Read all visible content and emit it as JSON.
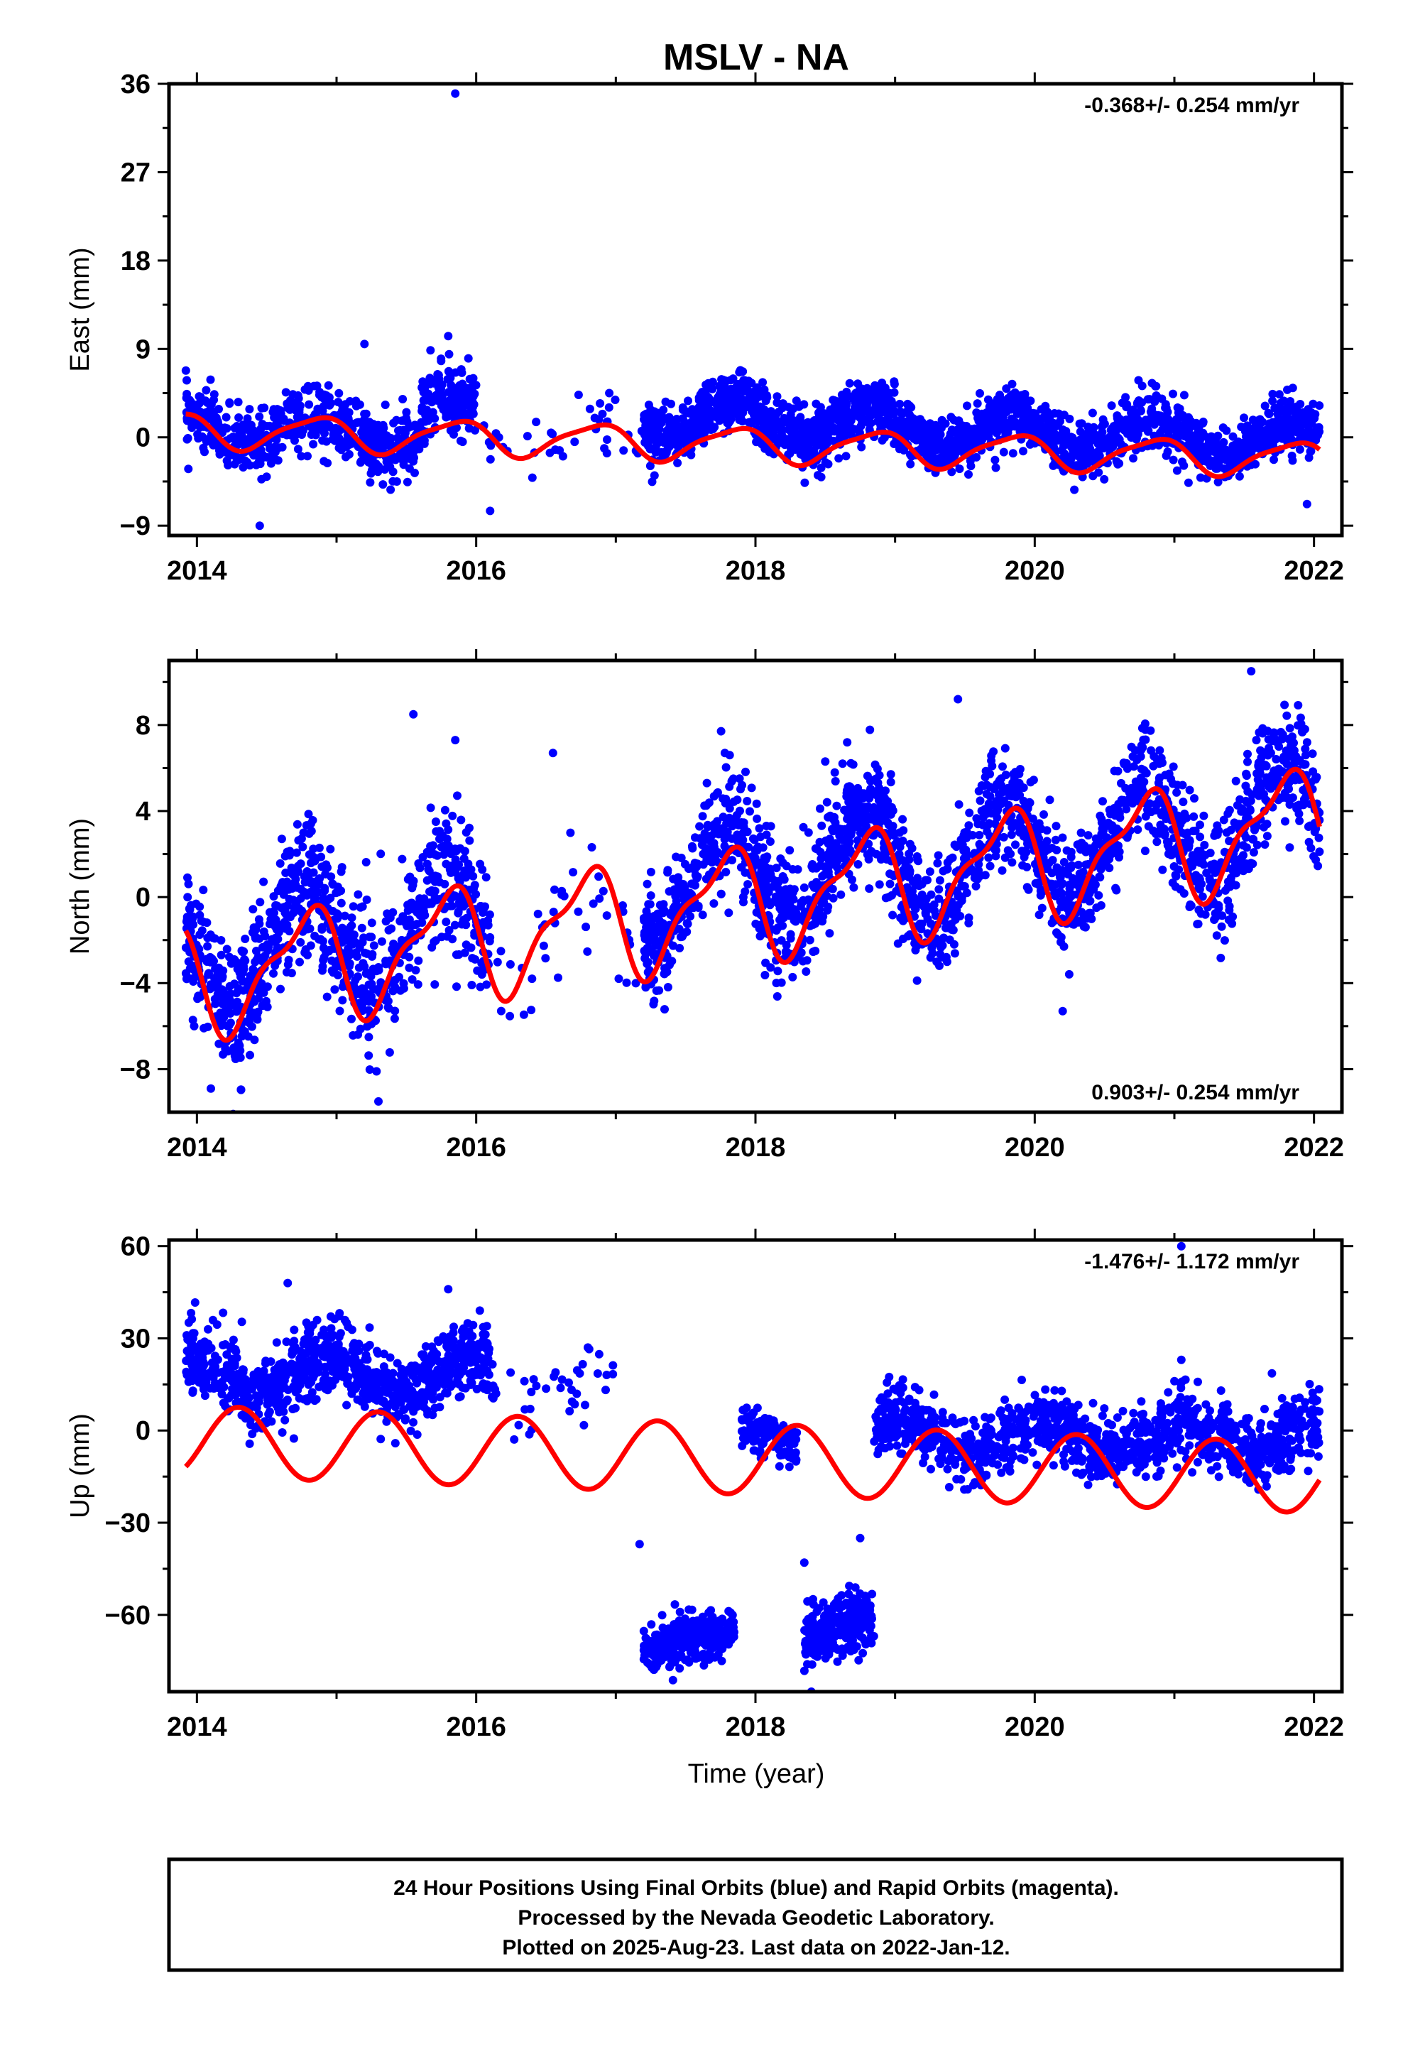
{
  "title": "MSLV - NA",
  "xlabel": "Time (year)",
  "footer": {
    "line1": "24 Hour Positions Using Final Orbits (blue) and Rapid Orbits (magenta).",
    "line2": "Processed by the Nevada Geodetic Laboratory.",
    "line3": "Plotted on 2025-Aug-23. Last data on 2022-Jan-12."
  },
  "colors": {
    "points": "#0000ff",
    "model": "#ff0000",
    "frame": "#000000"
  },
  "chart_data": [
    {
      "type": "scatter",
      "name": "east",
      "ylabel": "East (mm)",
      "rate_text": "-0.368+/- 0.254 mm/yr",
      "xlim": [
        2013.8,
        2022.2
      ],
      "ylim": [
        -10,
        36
      ],
      "xticks": [
        2014,
        2016,
        2018,
        2020,
        2022
      ],
      "yticks": [
        -9,
        0,
        9,
        18,
        27,
        36
      ],
      "segments": [
        {
          "x0": 2013.92,
          "x1": 2015.6,
          "base": 1.0,
          "slope": -0.37,
          "amp": 1.6,
          "phase": 0.6,
          "noise": 1.6,
          "n": 560
        },
        {
          "x0": 2015.6,
          "x1": 2016.0,
          "base": 2.5,
          "slope": -0.37,
          "amp": 1.6,
          "phase": 0.6,
          "noise": 1.8,
          "n": 180
        },
        {
          "x0": 2016.0,
          "x1": 2017.2,
          "base": 0.3,
          "slope": -0.37,
          "amp": 1.6,
          "phase": 0.6,
          "noise": 1.4,
          "n": 40
        },
        {
          "x0": 2017.2,
          "x1": 2019.0,
          "base": 2.0,
          "slope": -0.37,
          "amp": 1.8,
          "phase": 0.6,
          "noise": 1.5,
          "n": 820
        },
        {
          "x0": 2019.0,
          "x1": 2022.04,
          "base": 0.8,
          "slope": -0.37,
          "amp": 1.6,
          "phase": 0.6,
          "noise": 1.4,
          "n": 1200
        }
      ],
      "outliers": [
        [
          2015.85,
          35.0
        ],
        [
          2014.45,
          -9.0
        ],
        [
          2016.1,
          -7.5
        ],
        [
          2015.2,
          9.5
        ],
        [
          2015.8,
          10.3
        ],
        [
          2021.95,
          -6.8
        ]
      ],
      "model": {
        "intercept": 0.7,
        "slope": -0.368,
        "amp1": 1.7,
        "phase1": 0.6,
        "amp2": 0.4,
        "phase2": 0.9
      }
    },
    {
      "type": "scatter",
      "name": "north",
      "ylabel": "North (mm)",
      "rate_text": "0.903+/- 0.254 mm/yr",
      "xlim": [
        2013.8,
        2022.2
      ],
      "ylim": [
        -10,
        11
      ],
      "xticks": [
        2014,
        2016,
        2018,
        2020,
        2022
      ],
      "yticks": [
        -8,
        -4,
        0,
        4,
        8
      ],
      "segments": [
        {
          "x0": 2013.92,
          "x1": 2016.1,
          "base": -3.0,
          "slope": 0.9,
          "amp": 2.4,
          "phase": 0.52,
          "noise": 1.6,
          "n": 900
        },
        {
          "x0": 2016.1,
          "x1": 2017.2,
          "base": -2.0,
          "slope": 0.9,
          "amp": 2.2,
          "phase": 0.52,
          "noise": 1.3,
          "n": 40
        },
        {
          "x0": 2017.2,
          "x1": 2019.0,
          "base": 0.2,
          "slope": 0.9,
          "amp": 2.4,
          "phase": 0.52,
          "noise": 1.4,
          "n": 820
        },
        {
          "x0": 2019.0,
          "x1": 2022.04,
          "base": 1.2,
          "slope": 0.9,
          "amp": 2.5,
          "phase": 0.52,
          "noise": 1.3,
          "n": 1200
        }
      ],
      "outliers": [
        [
          2015.55,
          8.5
        ],
        [
          2015.85,
          7.3
        ],
        [
          2016.55,
          6.7
        ],
        [
          2018.5,
          6.3
        ],
        [
          2019.45,
          9.2
        ],
        [
          2021.55,
          10.5
        ],
        [
          2015.3,
          -9.5
        ],
        [
          2014.1,
          -8.9
        ],
        [
          2020.2,
          -5.3
        ]
      ],
      "model": {
        "intercept": -3.8,
        "slope": 0.903,
        "amp1": 2.4,
        "phase1": 0.52,
        "amp2": 0.9,
        "phase2": 0.3
      }
    },
    {
      "type": "scatter",
      "name": "up",
      "ylabel": "Up (mm)",
      "rate_text": "-1.476+/- 1.172 mm/yr",
      "xlim": [
        2013.8,
        2022.2
      ],
      "ylim": [
        -85,
        62
      ],
      "xticks": [
        2014,
        2016,
        2018,
        2020,
        2022
      ],
      "yticks": [
        -60,
        -30,
        0,
        30,
        60
      ],
      "segments": [
        {
          "x0": 2013.92,
          "x1": 2016.1,
          "base": 18.0,
          "slope": 0.0,
          "amp": 6.0,
          "phase": 0.7,
          "noise": 6.0,
          "n": 900
        },
        {
          "x0": 2016.1,
          "x1": 2017.0,
          "base": 12.0,
          "slope": 0.0,
          "amp": 4.0,
          "phase": 0.7,
          "noise": 6.0,
          "n": 40
        },
        {
          "x0": 2017.2,
          "x1": 2017.85,
          "base": -72.0,
          "slope": 12.0,
          "amp": 0.0,
          "phase": 0.0,
          "noise": 4.0,
          "n": 320
        },
        {
          "x0": 2017.9,
          "x1": 2018.3,
          "base": 0.0,
          "slope": -8.0,
          "amp": 0.0,
          "phase": 0.0,
          "noise": 4.0,
          "n": 110
        },
        {
          "x0": 2018.35,
          "x1": 2018.85,
          "base": -68.0,
          "slope": 14.0,
          "amp": 0.0,
          "phase": 0.0,
          "noise": 4.5,
          "n": 260
        },
        {
          "x0": 2018.85,
          "x1": 2022.04,
          "base": -2.0,
          "slope": 0.0,
          "amp": 5.0,
          "phase": 0.8,
          "noise": 5.5,
          "n": 1150
        }
      ],
      "outliers": [
        [
          2014.65,
          48.0
        ],
        [
          2015.8,
          46.0
        ],
        [
          2016.8,
          27.0
        ],
        [
          2017.17,
          -37.0
        ],
        [
          2018.35,
          -43.0
        ],
        [
          2018.75,
          -35.0
        ],
        [
          2018.4,
          -85.0
        ],
        [
          2021.05,
          23.0
        ],
        [
          2021.05,
          60.0
        ]
      ],
      "model": {
        "intercept": -3.5,
        "slope": -1.476,
        "amp1": 11.5,
        "phase1": 0.05,
        "amp2": 0.0,
        "phase2": 0.0
      }
    }
  ]
}
